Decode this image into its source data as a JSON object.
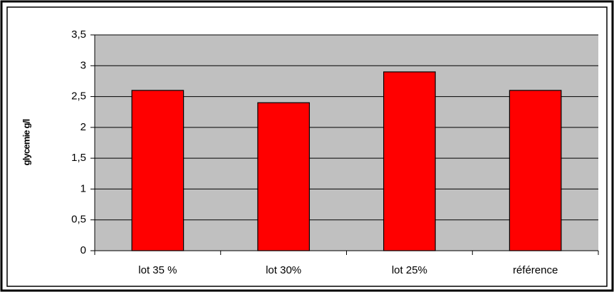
{
  "chart_data": {
    "type": "bar",
    "ylabel": "glycemie g/l",
    "categories": [
      "lot 35 %",
      "lot 30%",
      "lot 25%",
      "référence"
    ],
    "values": [
      2.6,
      2.4,
      2.9,
      2.6
    ],
    "color": "#ff0000",
    "ylim": [
      0,
      3.5
    ],
    "yticks": [
      0,
      {
        "value": 0.5,
        "label": "0,5"
      },
      1,
      {
        "value": 1.5,
        "label": "1,5"
      },
      2,
      {
        "value": 2.5,
        "label": "2,5"
      },
      3,
      {
        "value": 3.5,
        "label": "3,5"
      }
    ],
    "grid": true
  }
}
